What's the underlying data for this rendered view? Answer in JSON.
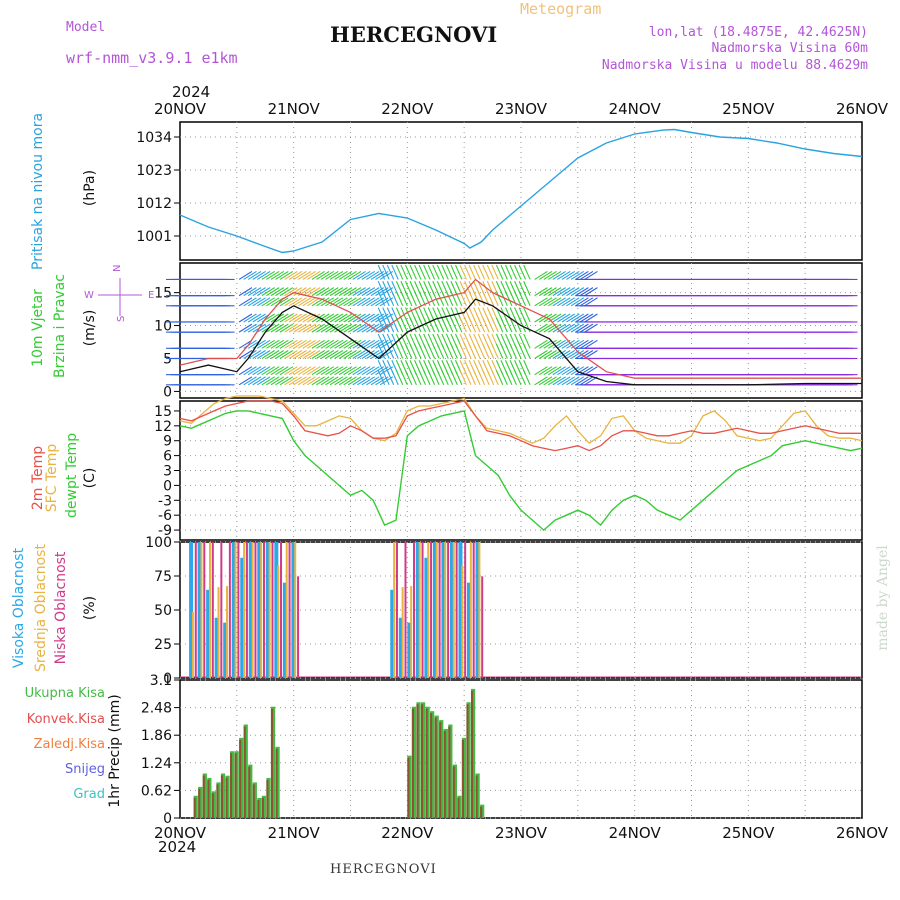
{
  "header": {
    "model_label": "Model",
    "model_value": "wrf-nmm_v3.9.1 e1km",
    "title": "HERCEGNOVI",
    "meteogram_label": "Meteogram",
    "lonlat": "lon,lat (18.4875E, 42.4625N)",
    "altitude": "Nadmorska Visina 60m",
    "model_altitude": "Nadmorska Visina u modelu 88.4629m",
    "year_top": "2024",
    "year_bottom": "2024"
  },
  "footer": {
    "station": "HERCEGNOVI"
  },
  "watermark": "made by Angel",
  "colors": {
    "pressure": "#29a3e0",
    "wind_label": "#33cc33",
    "wind_speed": "#111111",
    "gust": "#e05050",
    "t2m": "#e8504a",
    "sfc": "#e8b440",
    "dewpt": "#33cc33",
    "cloud_high": "#2aa8e8",
    "cloud_mid": "#e8b440",
    "cloud_low": "#d03a8a",
    "precip_total": "#44bb44",
    "precip_conv": "#e05050",
    "precip_frozen": "#f08040",
    "precip_snow": "#6060e0",
    "precip_hail": "#40c0c0",
    "axis_purple": "#b355d8"
  },
  "x_axis": {
    "ticks": [
      "20NOV",
      "21NOV",
      "22NOV",
      "23NOV",
      "24NOV",
      "25NOV",
      "26NOV"
    ]
  },
  "panels": {
    "pressure": {
      "label": "Pritisak na nivou mora",
      "unit": "(hPa)"
    },
    "wind": {
      "label1": "10m Vjetar",
      "label2": "Brzina i Pravac",
      "unit": "(m/s)",
      "compass": {
        "w": "W",
        "e": "E",
        "n": "N",
        "s": "S"
      }
    },
    "temp": {
      "label1": "2m Temp",
      "label2": "SFC Temp",
      "label3": "dewpt Temp",
      "unit": "(C)"
    },
    "cloud": {
      "label1": "Visoka Oblacnost",
      "label2": "Srednja Oblacnost",
      "label3": "Niska Oblacnost",
      "unit": "(%)"
    },
    "precip": {
      "labels": [
        "Ukupna Kisa",
        "Konvek.Kisa",
        "Zaledj.Kisa",
        "Snijeg",
        "Grad"
      ],
      "unit": "1hr Precip (mm)"
    }
  },
  "chart_data": [
    {
      "type": "line",
      "name": "pressure",
      "x_days": [
        0,
        0.25,
        0.5,
        0.75,
        0.9,
        1.0,
        1.25,
        1.5,
        1.75,
        2.0,
        2.25,
        2.5,
        2.55,
        2.65,
        2.75,
        3.0,
        3.25,
        3.5,
        3.75,
        4.0,
        4.25,
        4.35,
        4.5,
        4.75,
        5.0,
        5.25,
        5.5,
        5.75,
        6.0
      ],
      "y": [
        1008,
        1004,
        1001,
        997.5,
        995.5,
        996,
        999,
        1006.5,
        1008.5,
        1007,
        1003,
        998.5,
        997,
        999,
        1003,
        1011,
        1019,
        1027,
        1032,
        1035,
        1036.3,
        1036.5,
        1035.5,
        1034,
        1033.5,
        1032,
        1030,
        1028.5,
        1027.5
      ],
      "yticks": [
        1001,
        1012,
        1023,
        1034
      ],
      "ylim": [
        993,
        1039
      ]
    },
    {
      "type": "line",
      "name": "wind",
      "speed_x": [
        0,
        0.25,
        0.5,
        0.6,
        0.75,
        0.9,
        1.0,
        1.25,
        1.5,
        1.75,
        2.0,
        2.25,
        2.5,
        2.6,
        2.75,
        3.0,
        3.25,
        3.5,
        3.75,
        4.0,
        4.5,
        5.0,
        5.5,
        6.0
      ],
      "speed_y": [
        3,
        4,
        3,
        5,
        9,
        12,
        13,
        11,
        8,
        5,
        9,
        11,
        12,
        14,
        13,
        10,
        8,
        3,
        1.5,
        1,
        1,
        1,
        1.2,
        1.2
      ],
      "gust_y": [
        4,
        5,
        5,
        7,
        11,
        14,
        15,
        14,
        12,
        9,
        12,
        14,
        15,
        17,
        15,
        13,
        11,
        6,
        3,
        2,
        2,
        2,
        2,
        2
      ],
      "yticks": [
        0,
        5,
        10,
        15
      ],
      "ylim": [
        -1,
        19.5
      ]
    },
    {
      "type": "line",
      "name": "temperature",
      "x_days": [
        0,
        0.1,
        0.2,
        0.3,
        0.4,
        0.5,
        0.6,
        0.7,
        0.8,
        0.9,
        1.0,
        1.1,
        1.2,
        1.3,
        1.4,
        1.5,
        1.6,
        1.7,
        1.8,
        1.9,
        2.0,
        2.1,
        2.2,
        2.3,
        2.4,
        2.5,
        2.6,
        2.7,
        2.8,
        2.9,
        3.0,
        3.1,
        3.2,
        3.3,
        3.4,
        3.5,
        3.6,
        3.7,
        3.8,
        3.9,
        4.0,
        4.1,
        4.2,
        4.3,
        4.4,
        4.5,
        4.6,
        4.7,
        4.8,
        4.9,
        5.0,
        5.1,
        5.2,
        5.3,
        5.4,
        5.5,
        5.6,
        5.7,
        5.8,
        5.9,
        6.0
      ],
      "t2m": [
        13.5,
        13,
        14,
        15,
        16,
        16.5,
        17,
        17,
        17,
        16.5,
        14,
        11,
        10.5,
        10,
        10.5,
        12,
        11,
        9.5,
        9.5,
        10,
        14,
        15,
        15.5,
        16,
        16.5,
        17,
        14,
        11,
        10.5,
        10,
        9,
        8,
        7.5,
        7,
        7.5,
        8,
        7,
        8,
        10,
        11,
        11,
        10.5,
        10,
        10,
        10.5,
        11,
        10.5,
        10.5,
        11,
        11.5,
        11,
        10.5,
        10.5,
        11,
        11.5,
        12,
        11.5,
        11,
        10.5,
        10.5,
        10.5
      ],
      "sfc": [
        13,
        12.5,
        14.5,
        16.5,
        17.5,
        18,
        18,
        18,
        17.5,
        17,
        14.5,
        12,
        12,
        13,
        14,
        13.5,
        11,
        9.5,
        9,
        10.5,
        15,
        16,
        16,
        16.5,
        17,
        17.5,
        14,
        11.5,
        11,
        10.5,
        9.5,
        8.5,
        9.5,
        12,
        14,
        11,
        8.5,
        10,
        13.5,
        14,
        11,
        9.5,
        9,
        8.5,
        8.5,
        10,
        14,
        15,
        13,
        10,
        9.5,
        9,
        9.5,
        12,
        14.5,
        15,
        12,
        10,
        9.5,
        9.5,
        9
      ],
      "dewpt": [
        12,
        11.5,
        12.5,
        13.5,
        14.5,
        15,
        15,
        14.5,
        14,
        13.5,
        9,
        6,
        4,
        2,
        0,
        -2,
        -1,
        -3,
        -8,
        -7,
        10,
        12,
        13,
        14,
        14.5,
        15,
        6,
        4,
        2,
        -2,
        -5,
        -7,
        -9,
        -7,
        -6,
        -5,
        -6,
        -8,
        -5,
        -3,
        -2,
        -3,
        -5,
        -6,
        -7,
        -5,
        -3,
        -1,
        1,
        3,
        4,
        5,
        6,
        8,
        8.5,
        9,
        8.5,
        8,
        7.5,
        7,
        7.5
      ],
      "yticks": [
        -9,
        -6,
        -3,
        0,
        3,
        6,
        9,
        12,
        15
      ],
      "ylim": [
        -11,
        17
      ]
    },
    {
      "type": "bar",
      "name": "cloud_cover",
      "ylim": [
        0,
        100
      ],
      "yticks": [
        0,
        25,
        50,
        75,
        100
      ]
    },
    {
      "type": "bar",
      "name": "precipitation",
      "x_days": [
        0.12,
        0.16,
        0.2,
        0.24,
        0.28,
        0.32,
        0.36,
        0.4,
        0.44,
        0.48,
        0.52,
        0.56,
        0.6,
        0.64,
        0.68,
        0.72,
        0.76,
        0.8,
        0.84,
        0.88,
        2.0,
        2.04,
        2.08,
        2.12,
        2.16,
        2.2,
        2.24,
        2.28,
        2.32,
        2.36,
        2.4,
        2.44,
        2.48,
        2.52,
        2.56,
        2.6,
        2.64,
        2.68
      ],
      "values": [
        0.5,
        0.7,
        1.0,
        0.9,
        0.6,
        0.8,
        1.0,
        0.95,
        1.5,
        1.5,
        1.8,
        2.1,
        1.2,
        0.8,
        0.45,
        0.5,
        0.9,
        2.5,
        1.6,
        0,
        1.4,
        2.5,
        2.6,
        2.6,
        2.5,
        2.4,
        2.3,
        2.2,
        2.0,
        2.1,
        1.2,
        0.5,
        1.8,
        2.6,
        2.9,
        1.0,
        0.3,
        0
      ],
      "yticks": [
        0,
        0.62,
        1.24,
        1.86,
        2.48,
        3.1
      ],
      "ylim": [
        0,
        3.1
      ]
    }
  ]
}
